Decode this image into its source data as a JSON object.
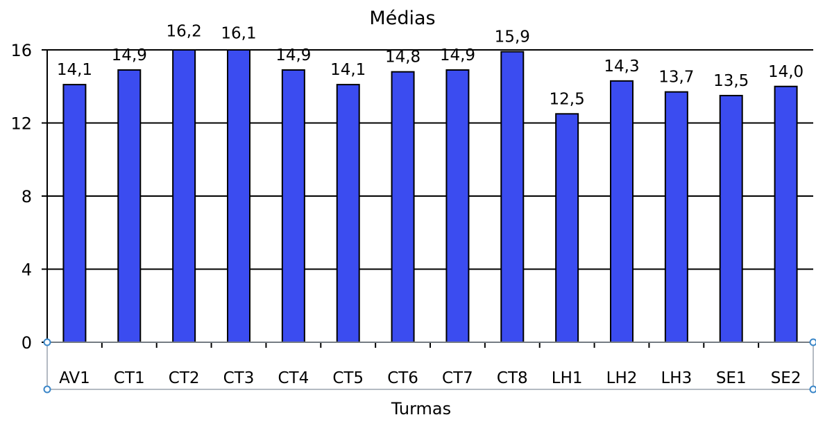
{
  "chart_data": {
    "type": "bar",
    "title": "Médias",
    "xlabel": "Turmas",
    "ylabel": "",
    "ylim": [
      0,
      16
    ],
    "yticks": [
      0,
      4,
      8,
      12,
      16
    ],
    "ytick_labels": [
      "0",
      "4",
      "8",
      "12",
      "16"
    ],
    "grid": true,
    "legend": "none",
    "categories": [
      "AV1",
      "CT1",
      "CT2",
      "CT3",
      "CT4",
      "CT5",
      "CT6",
      "CT7",
      "CT8",
      "LH1",
      "LH2",
      "LH3",
      "SE1",
      "SE2"
    ],
    "values": [
      14.1,
      14.9,
      16.2,
      16.1,
      14.9,
      14.1,
      14.8,
      14.9,
      15.9,
      12.5,
      14.3,
      13.7,
      13.5,
      14.0
    ],
    "data_labels": [
      "14,1",
      "14,9",
      "16,2",
      "16,1",
      "14,9",
      "14,1",
      "14,8",
      "14,9",
      "15,9",
      "12,5",
      "14,3",
      "13,7",
      "13,5",
      "14,0"
    ],
    "colors": {
      "bar": "#3B4CF0",
      "bar_edge": "#000000",
      "grid": "#000000",
      "selection": "#3A86C8"
    }
  }
}
